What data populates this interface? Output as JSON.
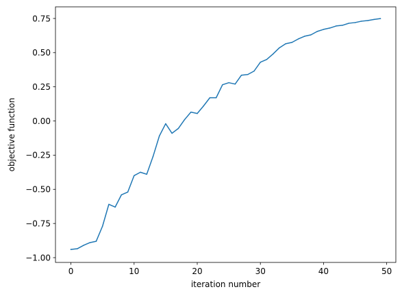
{
  "chart_data": {
    "type": "line",
    "title": "",
    "xlabel": "iteration number",
    "ylabel": "objective function",
    "xlim": [
      -2.45,
      51.45
    ],
    "ylim": [
      -1.035,
      0.835
    ],
    "xticks": [
      0,
      10,
      20,
      30,
      40,
      50
    ],
    "yticks": [
      -1.0,
      -0.75,
      -0.5,
      -0.25,
      0.0,
      0.25,
      0.5,
      0.75
    ],
    "ytick_labels": [
      "−1.00",
      "−0.75",
      "−0.50",
      "−0.25",
      "0.00",
      "0.25",
      "0.50",
      "0.75"
    ],
    "grid": false,
    "series": [
      {
        "color": "#1f77b4",
        "x": [
          0,
          1,
          2,
          3,
          4,
          5,
          6,
          7,
          8,
          9,
          10,
          11,
          12,
          13,
          14,
          15,
          16,
          17,
          18,
          19,
          20,
          21,
          22,
          23,
          24,
          25,
          26,
          27,
          28,
          29,
          30,
          31,
          32,
          33,
          34,
          35,
          36,
          37,
          38,
          39,
          40,
          41,
          42,
          43,
          44,
          45,
          46,
          47,
          48,
          49
        ],
        "y": [
          -0.94,
          -0.935,
          -0.91,
          -0.89,
          -0.88,
          -0.77,
          -0.61,
          -0.63,
          -0.54,
          -0.52,
          -0.4,
          -0.375,
          -0.39,
          -0.26,
          -0.11,
          -0.02,
          -0.09,
          -0.055,
          0.01,
          0.065,
          0.055,
          0.11,
          0.17,
          0.17,
          0.265,
          0.28,
          0.27,
          0.335,
          0.34,
          0.365,
          0.43,
          0.45,
          0.49,
          0.535,
          0.565,
          0.575,
          0.6,
          0.62,
          0.63,
          0.655,
          0.67,
          0.68,
          0.695,
          0.7,
          0.715,
          0.72,
          0.73,
          0.735,
          0.743,
          0.749
        ]
      }
    ]
  }
}
